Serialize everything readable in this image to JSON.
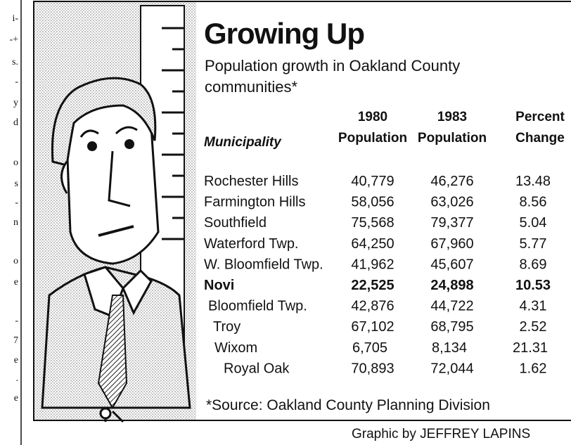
{
  "margin_text": [
    "i-",
    "-+",
    "s.",
    "-",
    "y",
    "d",
    "o",
    "s",
    "-",
    "n",
    "o",
    "e",
    "-",
    "7",
    "e",
    ".",
    "e"
  ],
  "title": "Growing Up",
  "subtitle": [
    "Population growth in Oakland County",
    "communities*"
  ],
  "table": {
    "header": [
      [
        "Municipality"
      ],
      [
        "1980",
        "Population"
      ],
      [
        "1983",
        "Population"
      ],
      [
        "Percent",
        "Change"
      ]
    ],
    "rows": [
      [
        "Rochester Hills",
        "40,779",
        "46,276",
        "13.48"
      ],
      [
        "Farmington Hills",
        "58,056",
        "63,026",
        "8.56"
      ],
      [
        "Southfield",
        "75,568",
        "79,377",
        "5.04"
      ],
      [
        "Waterford Twp.",
        "64,250",
        "67,960",
        "5.77"
      ],
      [
        "W. Bloomfield Twp.",
        "41,962",
        "45,607",
        "8.69"
      ],
      [
        "Novi",
        "22,525",
        "24,898",
        "10.53"
      ],
      [
        "Bloomfield Twp.",
        "42,876",
        "44,722",
        "4.31"
      ],
      [
        "Troy",
        "67,102",
        "68,795",
        "2.52"
      ],
      [
        "Wixom",
        "6,705",
        "8,134",
        "21.31"
      ],
      [
        "Royal Oak",
        "70,893",
        "72,044",
        "1.62"
      ]
    ],
    "highlight_row": 5
  },
  "footnote": "*Source: Oakland County Planning Division",
  "credit": "Graphic by JEFFREY LAPINS"
}
